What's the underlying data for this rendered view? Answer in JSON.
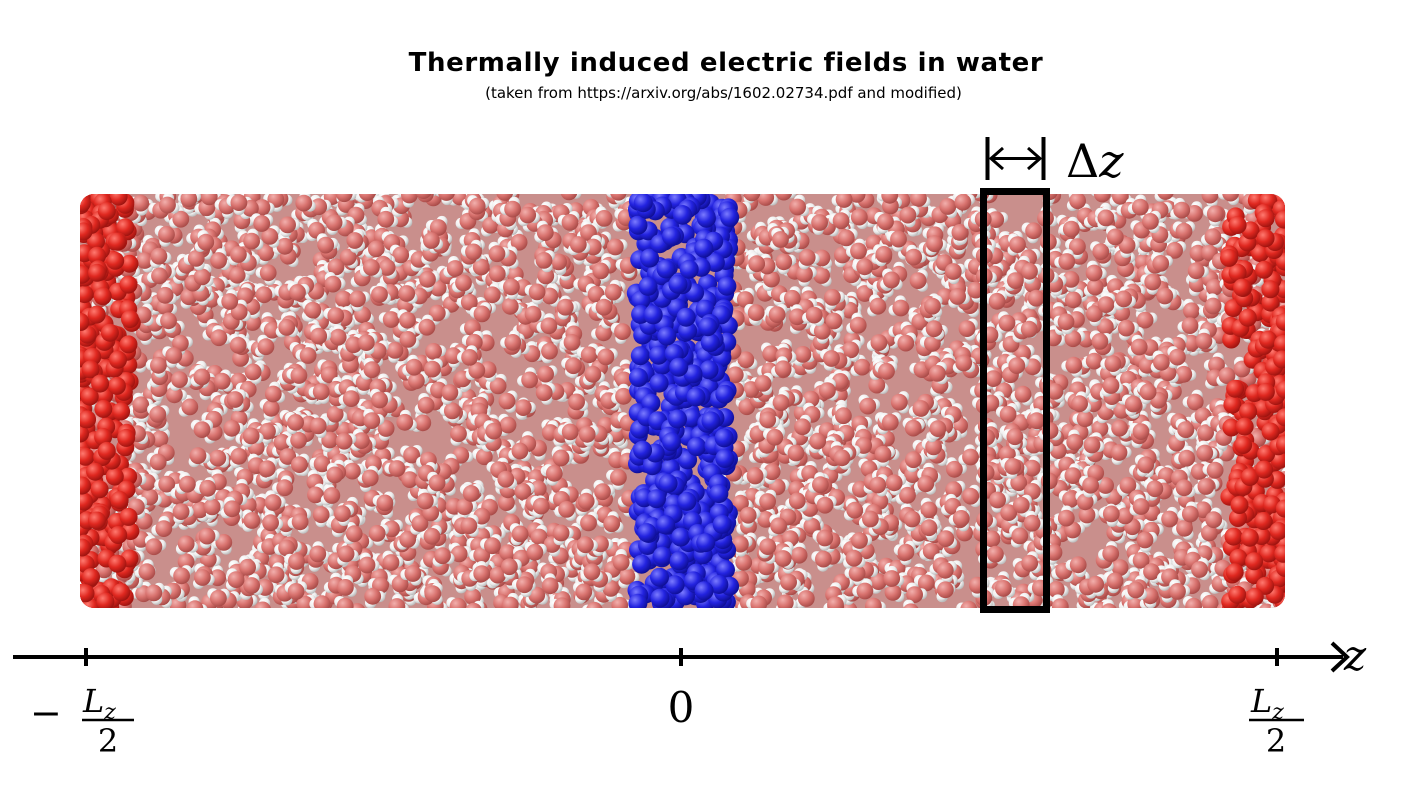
{
  "title": "Thermally induced electric fields in water",
  "subtitle": "(taken from https://arxiv.org/abs/1602.02734.pdf and modified)",
  "diagram": {
    "colors": {
      "hydrogen": "#f2f2f2",
      "oxygen": "#d97878",
      "wall_atoms": "#dd2222",
      "central_slab": "#2222dd",
      "axis": "#000000",
      "bin_outline": "#000000"
    },
    "bin_width_label": {
      "symbol": "Δ",
      "variable": "z"
    },
    "axis": {
      "variable": "z",
      "ticks": {
        "left": {
          "sign": "−",
          "numerator": "L",
          "subscript": "z",
          "denominator": "2"
        },
        "center": {
          "value": "0"
        },
        "right": {
          "numerator": "L",
          "subscript": "z",
          "denominator": "2"
        }
      }
    }
  }
}
